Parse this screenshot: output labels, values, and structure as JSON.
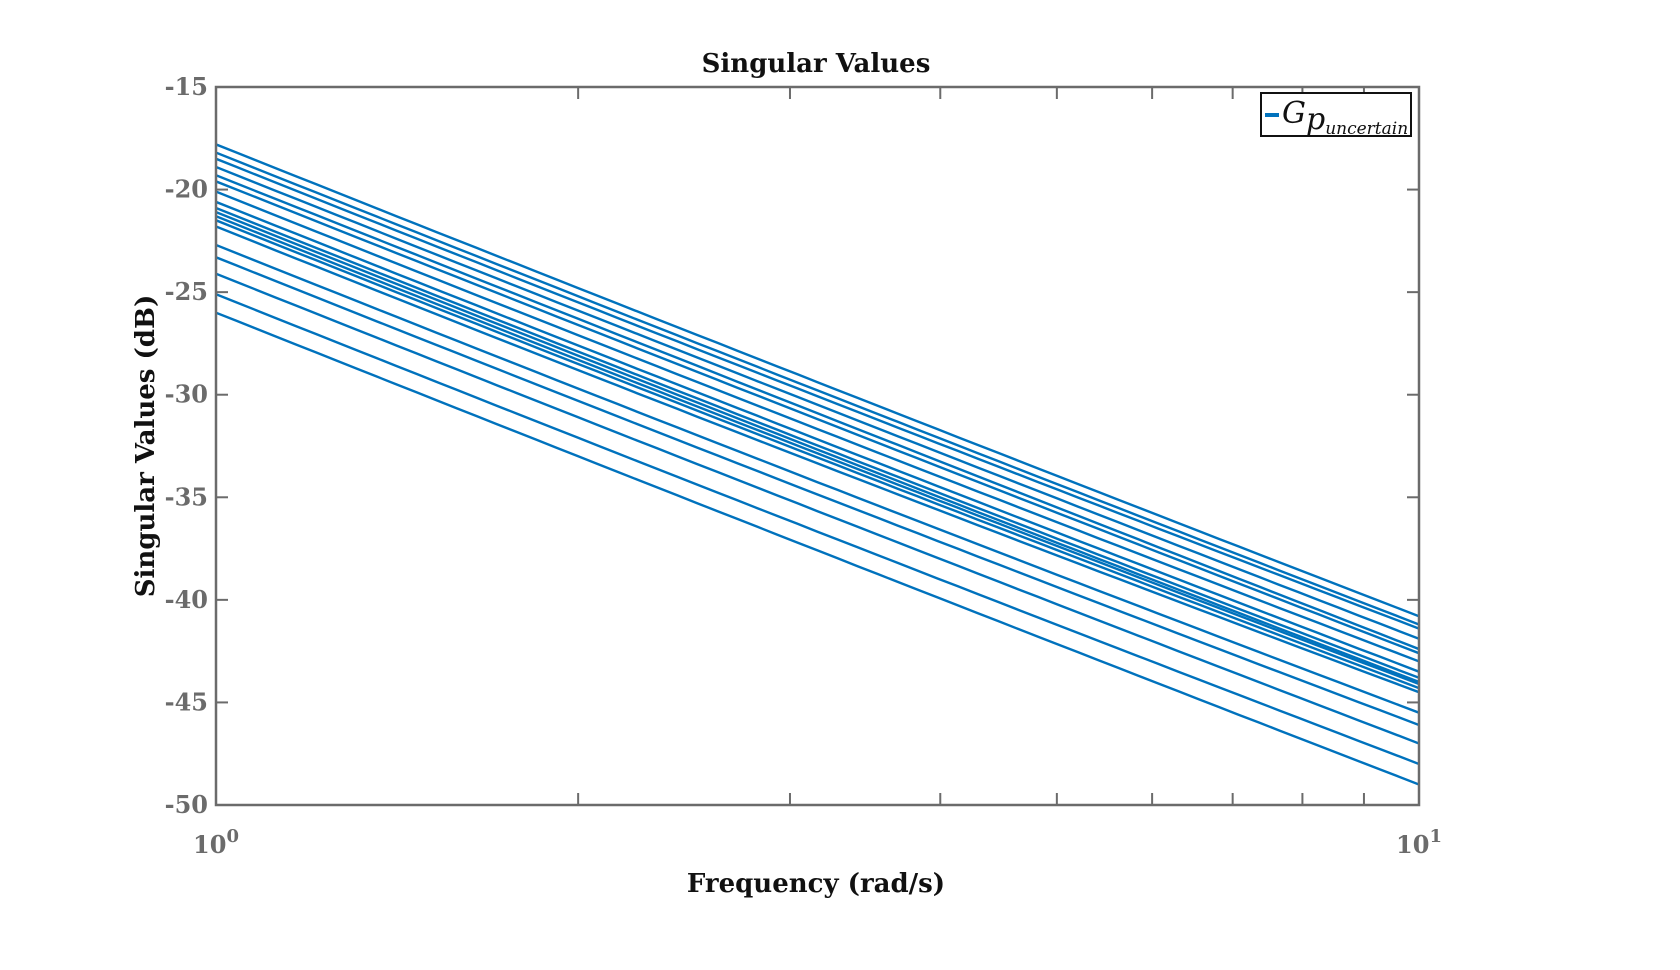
{
  "chart_data": {
    "type": "line",
    "title": "Singular Values",
    "xlabel": "Frequency (rad/s)",
    "ylabel": "Singular Values (dB)",
    "xscale": "log",
    "xlim": [
      1,
      10
    ],
    "ylim": [
      -50,
      -15
    ],
    "x_tick_labels": [
      {
        "value": 1,
        "base": "10",
        "exp": "0"
      },
      {
        "value": 10,
        "base": "10",
        "exp": "1"
      }
    ],
    "y_ticks": [
      -15,
      -20,
      -25,
      -30,
      -35,
      -40,
      -45,
      -50
    ],
    "grid": false,
    "legend": {
      "position": "top-right",
      "label_main": "G",
      "label_sub": "p",
      "label_subsub": "uncertain"
    },
    "line_color": "#0072BD",
    "x": [
      1,
      2,
      10
    ],
    "series": [
      {
        "values": [
          -17.8,
          -24.8,
          -40.8
        ]
      },
      {
        "values": [
          -18.2,
          -25.2,
          -41.2
        ]
      },
      {
        "values": [
          -18.5,
          -25.5,
          -41.4
        ]
      },
      {
        "values": [
          -18.9,
          -25.9,
          -41.9
        ]
      },
      {
        "values": [
          -19.3,
          -26.3,
          -42.4
        ]
      },
      {
        "values": [
          -19.6,
          -26.6,
          -42.6
        ]
      },
      {
        "values": [
          -20.1,
          -27.1,
          -43.0
        ]
      },
      {
        "values": [
          -20.6,
          -27.6,
          -43.5
        ]
      },
      {
        "values": [
          -20.9,
          -27.9,
          -43.8
        ]
      },
      {
        "values": [
          -21.1,
          -28.1,
          -44.0
        ]
      },
      {
        "values": [
          -21.3,
          -28.3,
          -44.1
        ]
      },
      {
        "values": [
          -21.5,
          -28.5,
          -44.3
        ]
      },
      {
        "values": [
          -21.8,
          -28.8,
          -44.5
        ]
      },
      {
        "values": [
          -22.7,
          -29.7,
          -45.5
        ]
      },
      {
        "values": [
          -23.3,
          -30.3,
          -46.1
        ]
      },
      {
        "values": [
          -24.1,
          -31.1,
          -47.0
        ]
      },
      {
        "values": [
          -25.1,
          -32.1,
          -48.0
        ]
      },
      {
        "values": [
          -26.0,
          -33.0,
          -49.0
        ]
      }
    ]
  }
}
